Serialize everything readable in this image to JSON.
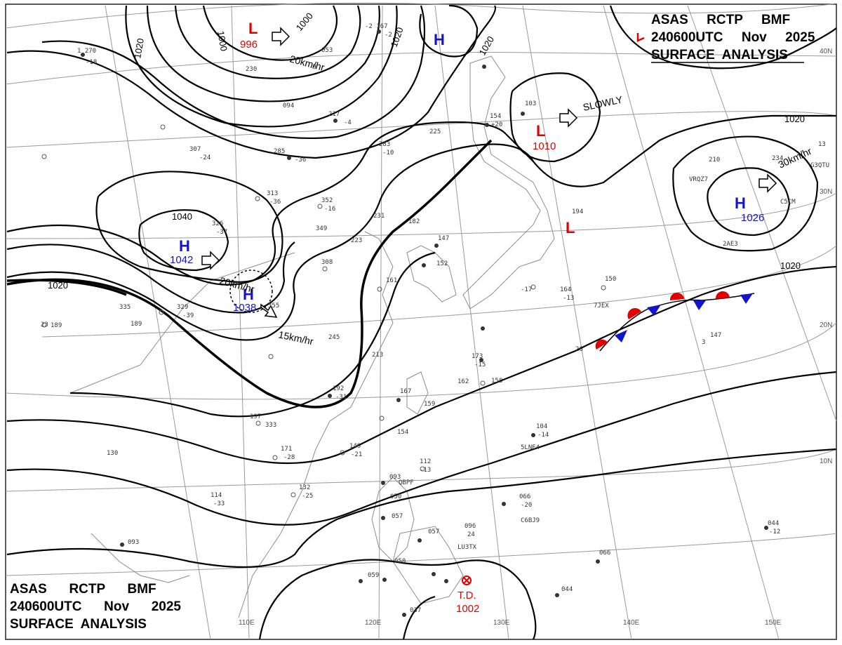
{
  "header_top": {
    "line1": "ASAS     RCTP     BMF",
    "line2": "240600UTC     Nov     2025",
    "line3": "SURFACE  ANALYSIS"
  },
  "header_bottom": {
    "line1": "ASAS      RCTP      BMF",
    "line2": "240600UTC      Nov      2025",
    "line3": "SURFACE  ANALYSIS"
  },
  "pressure_systems": [
    {
      "id": "low-996",
      "type": "L",
      "pressure": "996"
    },
    {
      "id": "high-north",
      "type": "H",
      "pressure": ""
    },
    {
      "id": "low-1010",
      "type": "L",
      "pressure": "1010"
    },
    {
      "id": "low-japan",
      "type": "L",
      "pressure": ""
    },
    {
      "id": "high-1026",
      "type": "H",
      "pressure": "1026"
    },
    {
      "id": "high-1042",
      "type": "H",
      "pressure": "1042"
    },
    {
      "id": "high-1038",
      "type": "H",
      "pressure": "1038"
    },
    {
      "id": "td-1002",
      "type": "T.D.",
      "pressure": "1002"
    }
  ],
  "motion_labels": [
    "20km/hr",
    "SLOWLY",
    "30km/hr",
    "20km/hr",
    "15km/hr"
  ],
  "isobar_labels": [
    "1000",
    "1000",
    "1020",
    "1020",
    "1020",
    "1020",
    "1020",
    "1020",
    "1040"
  ],
  "latitude_labels": [
    "40N",
    "30N",
    "20N",
    "10N"
  ],
  "longitude_labels": [
    "110E",
    "120E",
    "130E",
    "140E",
    "150E"
  ],
  "colors": {
    "low": "#e00000",
    "high": "#1414c8",
    "front_warm": "#e00000",
    "front_cold": "#1414c8"
  }
}
